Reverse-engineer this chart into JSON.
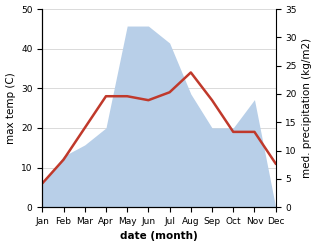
{
  "months": [
    "Jan",
    "Feb",
    "Mar",
    "Apr",
    "May",
    "Jun",
    "Jul",
    "Aug",
    "Sep",
    "Oct",
    "Nov",
    "Dec"
  ],
  "temperature": [
    6,
    12,
    20,
    28,
    28,
    27,
    29,
    34,
    27,
    19,
    19,
    11
  ],
  "precipitation": [
    4,
    9,
    11,
    14,
    32,
    32,
    29,
    20,
    14,
    14,
    19,
    0
  ],
  "temp_color": "#c0392b",
  "precip_color_fill": "#b8cfe8",
  "ylabel_left": "max temp (C)",
  "ylabel_right": "med. precipitation (kg/m2)",
  "xlabel": "date (month)",
  "ylim_left": [
    0,
    50
  ],
  "ylim_right": [
    0,
    35
  ],
  "yticks_left": [
    0,
    10,
    20,
    30,
    40,
    50
  ],
  "yticks_right": [
    0,
    5,
    10,
    15,
    20,
    25,
    30,
    35
  ],
  "background_color": "#ffffff",
  "grid_color": "#cccccc",
  "temp_linewidth": 1.8,
  "label_fontsize": 7.5,
  "tick_fontsize": 6.5
}
